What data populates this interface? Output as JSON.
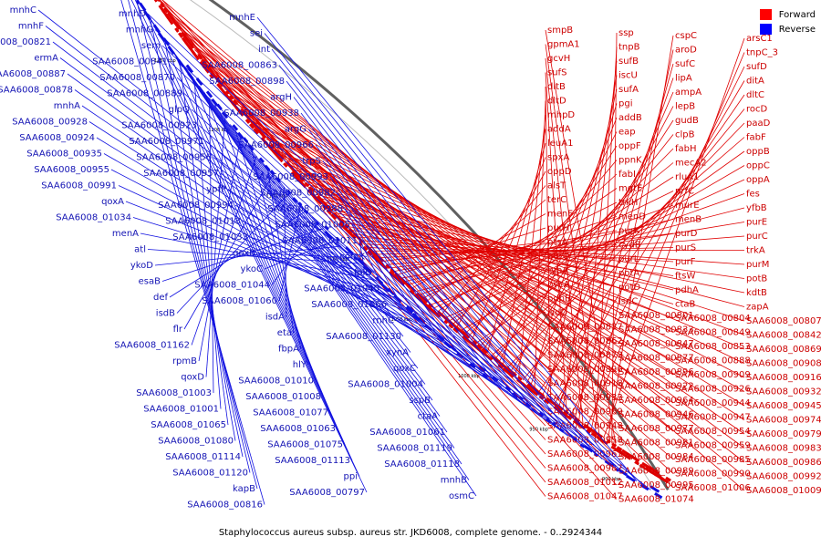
{
  "legend": {
    "forward": {
      "label": "Forward",
      "color": "#ff0000"
    },
    "reverse": {
      "label": "Reverse",
      "color": "#0000ff"
    }
  },
  "caption": "Staphylococcus aureus subsp. aureus str. JKD6008, complete genome. - 0..2924344",
  "ticks": [
    "900 kbp",
    "950 kbp",
    "1000 kbp",
    "1050 kbp",
    "1100 kbp",
    "1150 kbp",
    "1200 kbp",
    "1250 kbp",
    "1300 kbp"
  ],
  "forward_labels": [
    "smpB",
    "ssp",
    "cspC",
    "arsC1",
    "gpmA1",
    "tnpB",
    "aroD",
    "tnpC_3",
    "gcvH",
    "sufB",
    "sufC",
    "sufD",
    "sufS",
    "iscU",
    "lipA",
    "ditA",
    "dltB",
    "sufA",
    "ampA",
    "dltC",
    "dltD",
    "pgi",
    "lepB",
    "rocD",
    "mhpD",
    "addB",
    "gudB",
    "paaD",
    "addA",
    "eap",
    "clpB",
    "fabF",
    "leuA1",
    "oppF",
    "fabH",
    "oppB",
    "spxA",
    "ppnK",
    "mecA2",
    "oppC",
    "oppD",
    "fabI",
    "rluA1",
    "oppA",
    "alsT",
    "mgtE",
    "prfC",
    "fes",
    "terC",
    "trkH",
    "murE",
    "yfbB",
    "menF",
    "menD",
    "menB",
    "purE",
    "purH",
    "purK",
    "purD",
    "purC",
    "ptsA",
    "cydB",
    "purS",
    "trkA",
    "purQ",
    "purL",
    "purF",
    "purM",
    "typA",
    "potA",
    "ftsW",
    "potB",
    "pycA",
    "potD",
    "pdhA",
    "kdtB",
    "pdhB",
    "isdC",
    "ctaB",
    "zapA",
    "isdD",
    "SAA6008_00801",
    "SAA6008_00804",
    "SAA6008_00807",
    "SAA6008_00837",
    "SAA6008_00833",
    "SAA6008_00849",
    "SAA6008_00842",
    "SAA6008_00862",
    "SAA6008_00847",
    "SAA6008_00853",
    "SAA6008_00869",
    "SAA6008_00873",
    "SAA6008_00877",
    "SAA6008_00888",
    "SAA6008_00908",
    "SAA6008_00890",
    "SAA6008_00896",
    "SAA6008_00909",
    "SAA6008_00916",
    "SAA6008_00918",
    "SAA6008_00922",
    "SAA6008_00926",
    "SAA6008_00932",
    "SAA6008_00933",
    "SAA6008_00964",
    "SAA6008_00944",
    "SAA6008_00945",
    "SAA6008_00969",
    "SAA6008_00946",
    "SAA6008_00947",
    "SAA6008_00974",
    "SAA6008_00948",
    "SAA6008_00977",
    "SAA6008_00954",
    "SAA6008_00979",
    "SAA6008_00958",
    "SAA6008_00981",
    "SAA6008_00959",
    "SAA6008_00983",
    "SAA6008_00963",
    "SAA6008_00984",
    "SAA6008_00985",
    "SAA6008_00986",
    "SAA6008_00987",
    "SAA6008_00989",
    "SAA6008_00990",
    "SAA6008_00992",
    "SAA6008_01012",
    "SAA6008_00995",
    "SAA6008_01006",
    "SAA6008_01009",
    "SAA6008_01047",
    "SAA6008_01074"
  ],
  "reverse_labels": [
    "mnhC",
    "mnhD",
    "mnhE",
    "mnhF",
    "mnhG",
    "sei",
    "SAA6008_00821",
    "sem",
    "int",
    "ermA",
    "SAA6008_00841",
    "SAA6008_00863",
    "SAA6008_00887",
    "SAA6008_00870",
    "SAA6008_00898",
    "SAA6008_00878",
    "SAA6008_00889",
    "argH",
    "mnhA",
    "glpQ",
    "SAA6008_00938",
    "SAA6008_00928",
    "SAA6008_00923",
    "argG",
    "SAA6008_00924",
    "SAA6008_00971",
    "SAA6008_00966",
    "SAA6008_00935",
    "SAA6008_00956",
    "trpS",
    "SAA6008_00955",
    "SAA6008_00957",
    "SAA6008_00993",
    "SAA6008_00991",
    "ypfP",
    "SAA6008_00982",
    "qoxA",
    "SAA6008_00994",
    "SAA6008_00988",
    "SAA6008_01034",
    "SAA6008_01018",
    "SAA6008_01005",
    "menA",
    "SAA6008_01033",
    "SAA6008_01011",
    "atl",
    "qoxB",
    "comK",
    "ykoD",
    "ykoC",
    "folD",
    "esaB",
    "SAA6008_01044",
    "SAA6008_01040",
    "def",
    "SAA6008_01060",
    "SAA6008_01066",
    "isdB",
    "isdA",
    "rnhC",
    "flr",
    "eta",
    "SAA6008_01130",
    "SAA6008_01162",
    "fbpA",
    "xynA",
    "rpmB",
    "hlY",
    "qoxC",
    "qoxD",
    "SAA6008_01010",
    "SAA6008_01004",
    "SAA6008_01003",
    "SAA6008_01008",
    "sspB",
    "SAA6008_01001",
    "SAA6008_01077",
    "ctaA",
    "SAA6008_01065",
    "SAA6008_01063",
    "SAA6008_01061",
    "SAA6008_01080",
    "SAA6008_01075",
    "SAA6008_01119",
    "SAA6008_01114",
    "SAA6008_01113",
    "SAA6008_01118",
    "SAA6008_01120",
    "ppi",
    "mnhB",
    "kapB",
    "SAA6008_00797",
    "osmC",
    "SAA6008_00816"
  ]
}
